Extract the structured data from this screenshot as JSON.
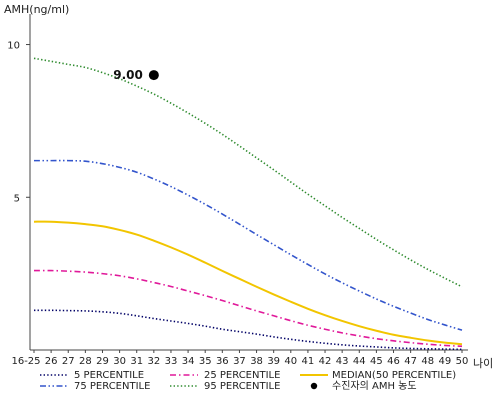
{
  "chart_data": {
    "type": "line",
    "ylabel": "AMH(ng/ml)",
    "xlabel": "나이",
    "ylim": [
      0,
      11
    ],
    "y_ticks": [
      5,
      10
    ],
    "categories": [
      "16-25",
      "26",
      "27",
      "28",
      "29",
      "30",
      "31",
      "32",
      "33",
      "34",
      "35",
      "36",
      "37",
      "38",
      "39",
      "40",
      "41",
      "42",
      "43",
      "44",
      "45",
      "46",
      "47",
      "48",
      "49",
      "50"
    ],
    "series": [
      {
        "name": "5 PERCENTILE",
        "color": "#000066",
        "dash": "dotted",
        "values": [
          1.3,
          1.3,
          1.29,
          1.28,
          1.25,
          1.2,
          1.12,
          1.03,
          0.95,
          0.87,
          0.78,
          0.68,
          0.6,
          0.52,
          0.43,
          0.35,
          0.28,
          0.22,
          0.17,
          0.13,
          0.1,
          0.07,
          0.05,
          0.04,
          0.03,
          0.02
        ]
      },
      {
        "name": "25 PERCENTILE",
        "color": "#e0199a",
        "dash": "dashdot",
        "values": [
          2.6,
          2.6,
          2.58,
          2.55,
          2.5,
          2.43,
          2.33,
          2.21,
          2.08,
          1.93,
          1.78,
          1.62,
          1.45,
          1.28,
          1.12,
          0.96,
          0.81,
          0.68,
          0.56,
          0.46,
          0.37,
          0.3,
          0.24,
          0.19,
          0.15,
          0.12
        ]
      },
      {
        "name": "MEDIAN(50 PERCENTILE)",
        "color": "#f2c500",
        "dash": "solid",
        "values": [
          4.2,
          4.2,
          4.17,
          4.12,
          4.05,
          3.93,
          3.78,
          3.58,
          3.36,
          3.12,
          2.86,
          2.59,
          2.33,
          2.07,
          1.82,
          1.58,
          1.35,
          1.14,
          0.95,
          0.78,
          0.63,
          0.5,
          0.4,
          0.31,
          0.24,
          0.19
        ]
      },
      {
        "name": "75 PERCENTILE",
        "color": "#3355cc",
        "dash": "dashdotdot",
        "values": [
          6.2,
          6.2,
          6.2,
          6.18,
          6.1,
          5.98,
          5.82,
          5.6,
          5.35,
          5.07,
          4.77,
          4.45,
          4.12,
          3.78,
          3.45,
          3.12,
          2.8,
          2.49,
          2.2,
          1.93,
          1.67,
          1.43,
          1.21,
          1.0,
          0.82,
          0.65
        ]
      },
      {
        "name": "95 PERCENTILE",
        "color": "#2e8b2e",
        "dash": "dotted",
        "values": [
          9.55,
          9.45,
          9.35,
          9.25,
          9.08,
          8.88,
          8.64,
          8.38,
          8.08,
          7.76,
          7.42,
          7.06,
          6.68,
          6.29,
          5.9,
          5.5,
          5.1,
          4.72,
          4.34,
          3.98,
          3.62,
          3.28,
          2.95,
          2.64,
          2.35,
          2.07
        ]
      }
    ],
    "marker": {
      "name": "수진자의 AMH 농도",
      "x": "32",
      "y": 9.0,
      "label": "9.00",
      "color": "#000000"
    },
    "legend_position": "bottom"
  }
}
